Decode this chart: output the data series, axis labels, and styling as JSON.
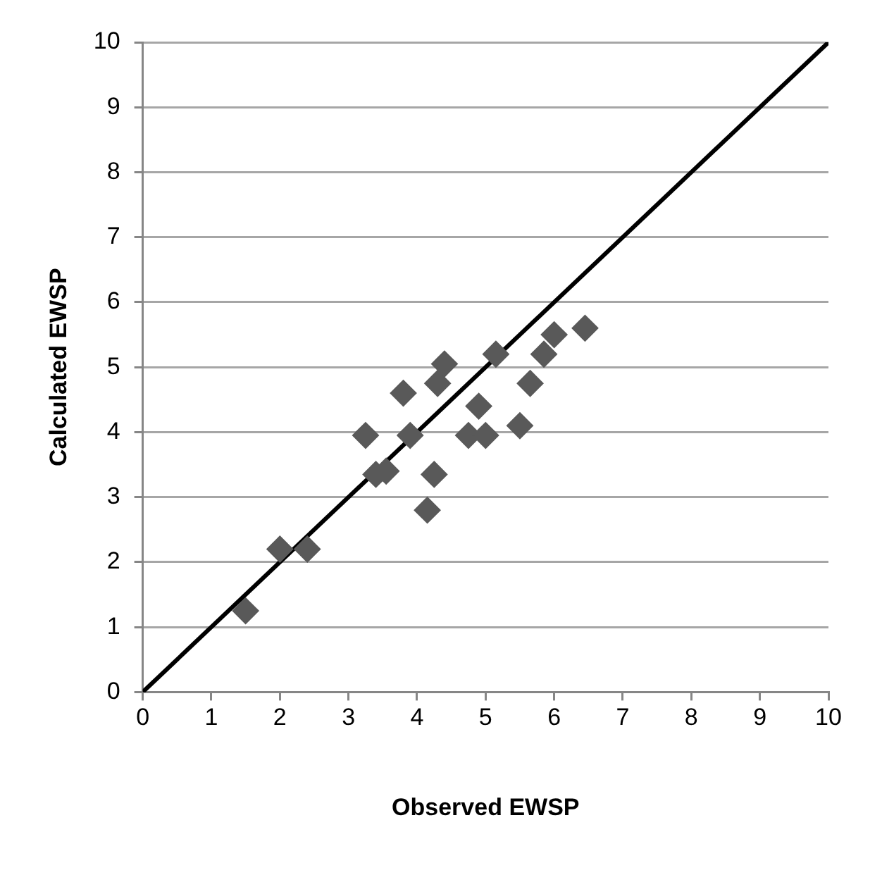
{
  "chart_data": {
    "type": "scatter",
    "xlabel": "Observed EWSP",
    "ylabel": "Calculated EWSP",
    "xlim": [
      0,
      10
    ],
    "xticks": [
      0,
      1,
      2,
      3,
      4,
      5,
      6,
      7,
      8,
      9,
      10
    ],
    "ylim": [
      0,
      10
    ],
    "yticks": [
      0,
      1,
      2,
      3,
      4,
      5,
      6,
      7,
      8,
      9,
      10
    ],
    "grid": "y",
    "legend": false,
    "marker": "diamond",
    "series": [
      {
        "color": "#595959",
        "x": [
          1.5,
          2.0,
          2.4,
          3.25,
          3.4,
          3.55,
          3.8,
          3.9,
          4.15,
          4.25,
          4.3,
          4.4,
          4.75,
          4.9,
          5.0,
          5.15,
          5.5,
          5.65,
          5.85,
          6.0,
          6.45
        ],
        "values": [
          1.25,
          2.2,
          2.2,
          3.95,
          3.35,
          3.4,
          4.6,
          3.95,
          2.8,
          3.35,
          4.75,
          5.05,
          3.95,
          4.4,
          3.95,
          5.2,
          4.1,
          4.75,
          5.2,
          5.5,
          5.6
        ]
      },
      {
        "type": "line",
        "color": "#000000",
        "marker": "none",
        "x": [
          0,
          10
        ],
        "values": [
          0,
          10
        ]
      }
    ]
  }
}
